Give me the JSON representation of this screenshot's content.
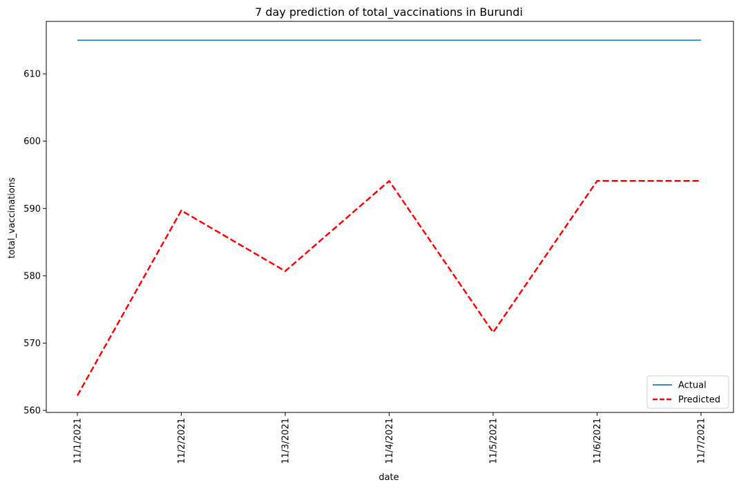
{
  "chart_data": {
    "type": "line",
    "title": "7 day prediction of total_vaccinations in Burundi",
    "xlabel": "date",
    "ylabel": "total_vaccinations",
    "categories": [
      "11/1/2021",
      "11/2/2021",
      "11/3/2021",
      "11/4/2021",
      "11/5/2021",
      "11/6/2021",
      "11/7/2021"
    ],
    "ylim": [
      559.7,
      617.8
    ],
    "yticks": [
      560,
      570,
      580,
      590,
      600,
      610
    ],
    "grid": false,
    "legend_position": "lower-right",
    "series": [
      {
        "name": "Actual",
        "values": [
          615,
          615,
          615,
          615,
          615,
          615,
          615
        ],
        "color": "#1f77b4",
        "style": "solid"
      },
      {
        "name": "Predicted",
        "values": [
          562.2,
          589.7,
          580.7,
          594.1,
          571.6,
          594.1,
          594.1
        ],
        "color": "#ff0000",
        "style": "dashed"
      }
    ]
  }
}
